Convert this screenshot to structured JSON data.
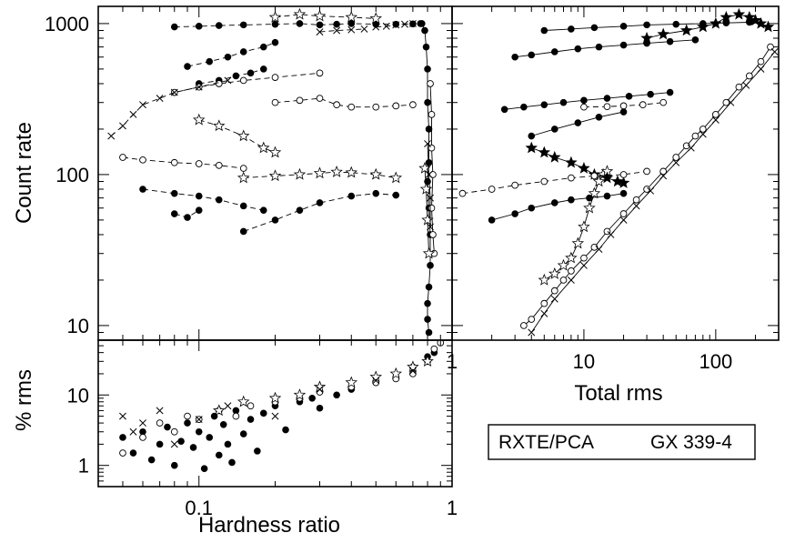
{
  "chart_data": [
    {
      "id": "hid",
      "type": "scatter",
      "xlabel": "Hardness ratio",
      "ylabel": "Count rate",
      "xscale": "log",
      "yscale": "log",
      "xlim": [
        0.04,
        1.0
      ],
      "ylim": [
        8,
        1300
      ],
      "y_ticks": [
        {
          "value": 10,
          "label": "10"
        },
        {
          "value": 100,
          "label": "100"
        },
        {
          "value": 1000,
          "label": "1000"
        }
      ],
      "colors": {
        "markers": "#000000"
      },
      "series": [
        {
          "marker": "filled-circle",
          "linestyle": "dashed",
          "x": [
            0.08,
            0.1,
            0.12,
            0.15,
            0.2,
            0.25,
            0.3,
            0.35,
            0.4,
            0.5,
            0.6,
            0.7,
            0.75
          ],
          "y": [
            950,
            960,
            970,
            980,
            990,
            1000,
            980,
            990,
            1000,
            990,
            990,
            995,
            1000
          ]
        },
        {
          "marker": "filled-circle",
          "linestyle": "dashed",
          "x": [
            0.09,
            0.11,
            0.13,
            0.15,
            0.18,
            0.2
          ],
          "y": [
            520,
            560,
            600,
            650,
            700,
            750
          ]
        },
        {
          "marker": "filled-circle",
          "linestyle": "dashed",
          "x": [
            0.1,
            0.12,
            0.14,
            0.16,
            0.18
          ],
          "y": [
            400,
            420,
            450,
            470,
            500
          ]
        },
        {
          "marker": "filled-circle",
          "linestyle": "dashed",
          "x": [
            0.15,
            0.2,
            0.25,
            0.3,
            0.4,
            0.5,
            0.6
          ],
          "y": [
            42,
            50,
            58,
            65,
            72,
            75,
            73
          ]
        },
        {
          "marker": "filled-circle",
          "linestyle": "dashed",
          "x": [
            0.06,
            0.08,
            0.1,
            0.12,
            0.15,
            0.18
          ],
          "y": [
            80,
            75,
            72,
            68,
            62,
            58
          ]
        },
        {
          "marker": "filled-circle",
          "linestyle": "dashed",
          "x": [
            0.08,
            0.09,
            0.1
          ],
          "y": [
            55,
            52,
            58
          ]
        },
        {
          "marker": "open-circle",
          "linestyle": "dashed",
          "x": [
            0.2,
            0.25,
            0.3,
            0.35,
            0.4,
            0.5,
            0.6,
            0.7
          ],
          "y": [
            300,
            310,
            320,
            290,
            280,
            280,
            285,
            290
          ]
        },
        {
          "marker": "open-circle",
          "linestyle": "dashed",
          "x": [
            0.05,
            0.06,
            0.08,
            0.1,
            0.12,
            0.15
          ],
          "y": [
            130,
            125,
            120,
            118,
            115,
            110
          ]
        },
        {
          "marker": "open-circle",
          "linestyle": "dashed",
          "x": [
            0.08,
            0.1,
            0.12,
            0.15,
            0.2,
            0.3
          ],
          "y": [
            350,
            380,
            400,
            420,
            440,
            470
          ]
        },
        {
          "marker": "star",
          "linestyle": "dashed",
          "x": [
            0.15,
            0.2,
            0.25,
            0.3,
            0.35,
            0.4,
            0.5,
            0.6
          ],
          "y": [
            95,
            98,
            100,
            102,
            104,
            103,
            100,
            95
          ]
        },
        {
          "marker": "star",
          "linestyle": "dashed",
          "x": [
            0.2,
            0.25,
            0.3,
            0.4,
            0.5
          ],
          "y": [
            1100,
            1150,
            1120,
            1100,
            1080
          ]
        },
        {
          "marker": "star",
          "linestyle": "dashed",
          "x": [
            0.1,
            0.12,
            0.15,
            0.18,
            0.2
          ],
          "y": [
            230,
            210,
            180,
            150,
            140
          ]
        },
        {
          "marker": "cross",
          "linestyle": "dashed",
          "x": [
            0.045,
            0.05,
            0.055,
            0.06,
            0.07,
            0.08,
            0.1,
            0.13
          ],
          "y": [
            180,
            210,
            250,
            290,
            320,
            350,
            380,
            420
          ]
        },
        {
          "marker": "cross",
          "linestyle": "dashed",
          "x": [
            0.5,
            0.55,
            0.6,
            0.65,
            0.7
          ],
          "y": [
            950,
            960,
            980,
            990,
            1000
          ]
        },
        {
          "marker": "cross",
          "linestyle": "dashed",
          "x": [
            0.3,
            0.35,
            0.4,
            0.45
          ],
          "y": [
            880,
            900,
            910,
            920
          ]
        },
        {
          "marker": "filled-circle",
          "linestyle": "solid",
          "x": [
            0.76,
            0.78,
            0.79,
            0.8,
            0.8,
            0.81,
            0.81,
            0.8,
            0.81,
            0.82,
            0.82,
            0.81,
            0.8,
            0.8,
            0.81
          ],
          "y": [
            1000,
            900,
            700,
            500,
            300,
            200,
            120,
            90,
            60,
            40,
            25,
            18,
            14,
            11,
            9
          ]
        },
        {
          "marker": "open-circle",
          "linestyle": "solid",
          "x": [
            0.82,
            0.83,
            0.83,
            0.84,
            0.83,
            0.84,
            0.85
          ],
          "y": [
            400,
            250,
            150,
            100,
            60,
            40,
            30
          ]
        },
        {
          "marker": "star",
          "linestyle": "solid",
          "x": [
            0.78,
            0.79,
            0.8,
            0.81
          ],
          "y": [
            110,
            80,
            50,
            30
          ]
        },
        {
          "marker": "cross",
          "linestyle": "solid",
          "x": [
            0.8,
            0.81,
            0.82,
            0.82
          ],
          "y": [
            160,
            100,
            70,
            45
          ]
        }
      ]
    },
    {
      "id": "rid",
      "type": "scatter",
      "xlabel": "Total rms",
      "ylabel": "",
      "xscale": "log",
      "yscale": "log",
      "xlim": [
        1,
        300
      ],
      "ylim": [
        8,
        1300
      ],
      "x_ticks": [
        {
          "value": 1,
          "label": "1"
        },
        {
          "value": 10,
          "label": "10"
        },
        {
          "value": 100,
          "label": "100"
        }
      ],
      "colors": {
        "markers": "#000000"
      },
      "series": [
        {
          "marker": "open-circle",
          "linestyle": "solid",
          "x": [
            3.5,
            4,
            5,
            6,
            7,
            8,
            10,
            12,
            15,
            20,
            25,
            30,
            40,
            50,
            60,
            70,
            80,
            100,
            120,
            150,
            180,
            220,
            260
          ],
          "y": [
            10,
            11,
            14,
            17,
            20,
            23,
            28,
            33,
            42,
            55,
            68,
            80,
            105,
            130,
            155,
            180,
            200,
            250,
            300,
            380,
            450,
            560,
            700
          ]
        },
        {
          "marker": "cross",
          "linestyle": "solid",
          "x": [
            4,
            5,
            6,
            8,
            10,
            13,
            16,
            20,
            25,
            32,
            40,
            50,
            65,
            80,
            100,
            130,
            170,
            220,
            280
          ],
          "y": [
            9,
            12,
            15,
            20,
            25,
            32,
            40,
            50,
            62,
            78,
            98,
            120,
            150,
            185,
            230,
            300,
            390,
            500,
            650
          ]
        },
        {
          "marker": "star",
          "linestyle": "solid",
          "x": [
            5,
            6,
            7,
            8,
            9,
            10,
            11,
            12,
            13,
            14,
            15
          ],
          "y": [
            20,
            22,
            25,
            28,
            35,
            45,
            60,
            75,
            90,
            100,
            105
          ]
        },
        {
          "marker": "filled-star",
          "linestyle": "solid",
          "x": [
            30,
            40,
            60,
            80,
            100,
            120,
            150,
            180,
            200,
            220,
            250
          ],
          "y": [
            800,
            850,
            900,
            950,
            1000,
            1100,
            1150,
            1100,
            1050,
            1000,
            950
          ]
        },
        {
          "marker": "filled-star",
          "linestyle": "solid",
          "x": [
            4,
            5,
            6,
            8,
            10,
            12,
            15,
            18,
            20
          ],
          "y": [
            150,
            140,
            130,
            120,
            110,
            100,
            95,
            90,
            88
          ]
        },
        {
          "marker": "filled-circle",
          "linestyle": "solid",
          "x": [
            5,
            8,
            12,
            20,
            30,
            50,
            80,
            120,
            180
          ],
          "y": [
            900,
            920,
            940,
            960,
            980,
            990,
            1000,
            1010,
            1020
          ]
        },
        {
          "marker": "filled-circle",
          "linestyle": "solid",
          "x": [
            3,
            4,
            6,
            9,
            13,
            20,
            30,
            45,
            70
          ],
          "y": [
            600,
            620,
            650,
            680,
            700,
            720,
            740,
            760,
            780
          ]
        },
        {
          "marker": "filled-circle",
          "linestyle": "solid",
          "x": [
            2.5,
            3.5,
            5,
            7,
            10,
            15,
            22,
            32,
            45
          ],
          "y": [
            270,
            280,
            290,
            300,
            310,
            320,
            330,
            340,
            350
          ]
        },
        {
          "marker": "filled-circle",
          "linestyle": "solid",
          "x": [
            2,
            3,
            4,
            6,
            8,
            11,
            15,
            20
          ],
          "y": [
            50,
            55,
            60,
            65,
            68,
            70,
            72,
            75
          ]
        },
        {
          "marker": "open-circle",
          "linestyle": "dashed",
          "x": [
            1.2,
            2,
            3,
            5,
            8,
            12,
            20,
            30
          ],
          "y": [
            75,
            80,
            85,
            90,
            95,
            98,
            100,
            105
          ]
        },
        {
          "marker": "open-circle",
          "linestyle": "dashed",
          "x": [
            10,
            15,
            20,
            28,
            40
          ],
          "y": [
            280,
            282,
            285,
            290,
            300
          ]
        },
        {
          "marker": "filled-circle",
          "linestyle": "solid",
          "x": [
            4,
            6,
            9,
            13,
            20
          ],
          "y": [
            180,
            200,
            220,
            240,
            260
          ]
        }
      ]
    },
    {
      "id": "rms",
      "type": "scatter",
      "xlabel": "Hardness ratio",
      "ylabel": "% rms",
      "xscale": "log",
      "yscale": "log",
      "xlim": [
        0.04,
        1.0
      ],
      "ylim": [
        0.5,
        60
      ],
      "x_ticks": [
        {
          "value": 0.1,
          "label": "0.1"
        },
        {
          "value": 1,
          "label": "1"
        }
      ],
      "y_ticks": [
        {
          "value": 1,
          "label": "1"
        },
        {
          "value": 10,
          "label": "10"
        }
      ],
      "colors": {
        "markers": "#000000"
      },
      "series": [
        {
          "marker": "filled-circle",
          "linestyle": "none",
          "x": [
            0.05,
            0.055,
            0.06,
            0.065,
            0.07,
            0.075,
            0.08,
            0.085,
            0.09,
            0.095,
            0.1,
            0.105,
            0.11,
            0.115,
            0.12,
            0.125,
            0.13,
            0.135,
            0.14,
            0.15,
            0.16,
            0.17,
            0.18,
            0.2,
            0.22,
            0.25,
            0.28,
            0.3,
            0.35,
            0.4,
            0.5,
            0.6,
            0.7,
            0.8,
            0.85
          ],
          "y": [
            2.5,
            1.5,
            3,
            1.2,
            2,
            3.5,
            1.0,
            2.2,
            4,
            1.8,
            3,
            0.9,
            2.5,
            5,
            1.4,
            3.8,
            2.0,
            1.1,
            6,
            2.8,
            4.5,
            1.6,
            5.5,
            7,
            3.2,
            8,
            9,
            6.5,
            10,
            12,
            15,
            18,
            25,
            35,
            40
          ]
        },
        {
          "marker": "open-circle",
          "linestyle": "none",
          "x": [
            0.05,
            0.06,
            0.07,
            0.08,
            0.09,
            0.1,
            0.12,
            0.14,
            0.16,
            0.2,
            0.25,
            0.3,
            0.4,
            0.5,
            0.6,
            0.7,
            0.8,
            0.85,
            0.9
          ],
          "y": [
            1.5,
            2.5,
            4,
            3,
            5,
            4.5,
            6,
            5,
            7,
            8,
            9,
            11,
            13,
            15,
            17,
            20,
            30,
            45,
            55
          ]
        },
        {
          "marker": "star",
          "linestyle": "none",
          "x": [
            0.12,
            0.15,
            0.2,
            0.25,
            0.3,
            0.4,
            0.5,
            0.6,
            0.7,
            0.8
          ],
          "y": [
            6,
            8,
            9,
            10,
            13,
            15,
            18,
            20,
            25,
            30
          ]
        },
        {
          "marker": "cross",
          "linestyle": "none",
          "x": [
            0.05,
            0.055,
            0.06,
            0.07,
            0.08,
            0.1,
            0.13,
            0.2,
            0.3,
            0.5,
            0.7
          ],
          "y": [
            5,
            3,
            4,
            6,
            2,
            4.5,
            7,
            5,
            12,
            16,
            22
          ]
        }
      ]
    }
  ],
  "legend": {
    "instrument": "RXTE/PCA",
    "source": "GX 339-4"
  }
}
